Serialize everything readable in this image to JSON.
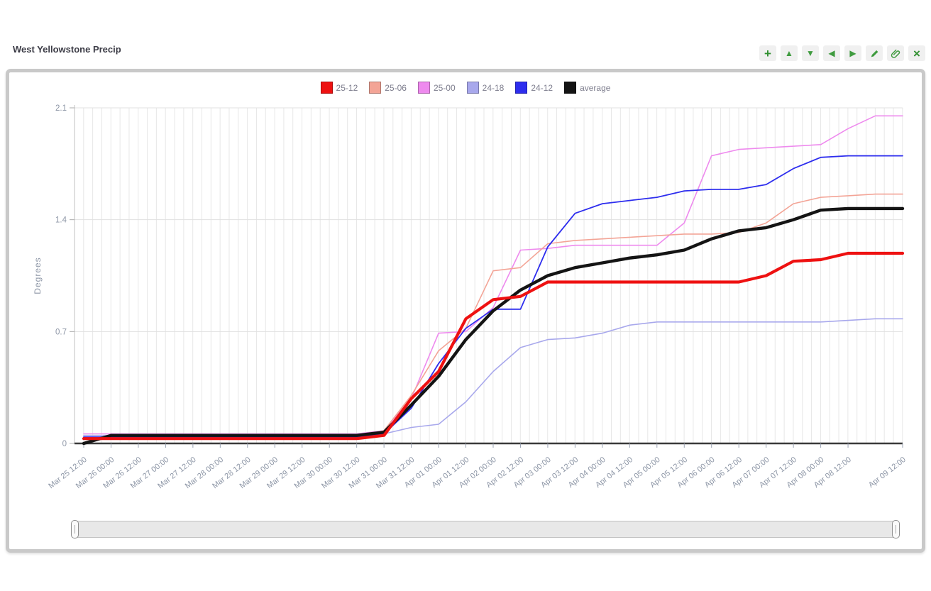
{
  "window": {
    "title": "West Yellowstone Precip"
  },
  "ui": {
    "toolbar": {
      "buttons": [
        "add",
        "move-up",
        "move-down",
        "move-left",
        "move-right",
        "edit",
        "attach",
        "close"
      ]
    },
    "accent_green": "#3f9b3f",
    "panel_border_color": "#c9c9c9",
    "tick_label_color": "#8d96a6",
    "legend_label_color": "#7d7d8d"
  },
  "chart_data": {
    "type": "line",
    "title": "West Yellowstone Precip",
    "xlabel": "",
    "ylabel": "Degrees",
    "ylim": [
      0,
      2.1
    ],
    "yticks": [
      0,
      0.7,
      1.4,
      2.1
    ],
    "grid": true,
    "legend_position": "top",
    "x_labels": [
      "Mar 25 12:00",
      "Mar 26 00:00",
      "Mar 26 12:00",
      "Mar 27 00:00",
      "Mar 27 12:00",
      "Mar 28 00:00",
      "Mar 28 12:00",
      "Mar 29 00:00",
      "Mar 29 12:00",
      "Mar 30 00:00",
      "Mar 30 12:00",
      "Mar 31 00:00",
      "Mar 31 12:00",
      "Apr 01 00:00",
      "Apr 01 12:00",
      "Apr 02 00:00",
      "Apr 02 12:00",
      "Apr 03 00:00",
      "Apr 03 12:00",
      "Apr 04 00:00",
      "Apr 04 12:00",
      "Apr 05 00:00",
      "Apr 05 12:00",
      "Apr 06 00:00",
      "Apr 06 12:00",
      "Apr 07 00:00",
      "Apr 07 12:00",
      "Apr 08 00:00",
      "Apr 08 12:00",
      "",
      "Apr 09 12:00"
    ],
    "series": [
      {
        "name": "25-12",
        "color": "#ee1111",
        "width": 4.2,
        "values": [
          0.03,
          0.03,
          0.03,
          0.03,
          0.03,
          0.03,
          0.03,
          0.03,
          0.03,
          0.03,
          0.03,
          0.05,
          0.28,
          0.45,
          0.78,
          0.9,
          0.92,
          1.01,
          1.01,
          1.01,
          1.01,
          1.01,
          1.01,
          1.01,
          1.01,
          1.05,
          1.14,
          1.15,
          1.19,
          1.19,
          1.19
        ]
      },
      {
        "name": "25-06",
        "color": "#f3a496",
        "width": 1.6,
        "values": [
          0.04,
          0.04,
          0.04,
          0.04,
          0.04,
          0.04,
          0.04,
          0.04,
          0.04,
          0.04,
          0.04,
          0.08,
          0.3,
          0.58,
          0.72,
          1.08,
          1.1,
          1.25,
          1.27,
          1.28,
          1.29,
          1.3,
          1.31,
          1.31,
          1.32,
          1.38,
          1.5,
          1.54,
          1.55,
          1.56,
          1.56
        ]
      },
      {
        "name": "25-00",
        "color": "#ee8aee",
        "width": 1.6,
        "values": [
          0.06,
          0.06,
          0.06,
          0.06,
          0.06,
          0.06,
          0.06,
          0.06,
          0.06,
          0.06,
          0.06,
          0.08,
          0.28,
          0.69,
          0.7,
          0.85,
          1.21,
          1.22,
          1.24,
          1.24,
          1.24,
          1.24,
          1.38,
          1.8,
          1.84,
          1.85,
          1.86,
          1.87,
          1.97,
          2.05,
          2.05
        ]
      },
      {
        "name": "24-18",
        "color": "#a8a8ec",
        "width": 1.6,
        "values": [
          0.05,
          0.05,
          0.05,
          0.05,
          0.05,
          0.05,
          0.05,
          0.05,
          0.05,
          0.05,
          0.05,
          0.06,
          0.1,
          0.12,
          0.26,
          0.45,
          0.6,
          0.65,
          0.66,
          0.69,
          0.74,
          0.76,
          0.76,
          0.76,
          0.76,
          0.76,
          0.76,
          0.76,
          0.77,
          0.78,
          0.78
        ]
      },
      {
        "name": "24-12",
        "color": "#2d2dee",
        "width": 1.8,
        "values": [
          0.04,
          0.04,
          0.04,
          0.04,
          0.04,
          0.04,
          0.04,
          0.04,
          0.04,
          0.04,
          0.04,
          0.06,
          0.22,
          0.5,
          0.72,
          0.84,
          0.84,
          1.23,
          1.44,
          1.5,
          1.52,
          1.54,
          1.58,
          1.59,
          1.59,
          1.62,
          1.72,
          1.79,
          1.8,
          1.8,
          1.8
        ]
      },
      {
        "name": "average",
        "color": "#141414",
        "width": 4.4,
        "values": [
          0.0,
          0.05,
          0.05,
          0.05,
          0.05,
          0.05,
          0.05,
          0.05,
          0.05,
          0.05,
          0.05,
          0.07,
          0.24,
          0.42,
          0.65,
          0.83,
          0.96,
          1.05,
          1.1,
          1.13,
          1.16,
          1.18,
          1.21,
          1.28,
          1.33,
          1.35,
          1.4,
          1.46,
          1.47,
          1.47,
          1.47
        ]
      }
    ]
  }
}
